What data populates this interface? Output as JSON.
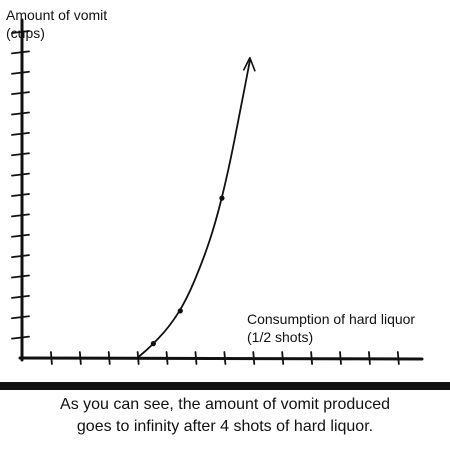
{
  "chart_data": {
    "type": "line",
    "ylabel_lines": [
      "Amount of vomit",
      "(cups)"
    ],
    "xlabel_lines": [
      "Consumption of hard liquor",
      "(1/2 shots)"
    ],
    "x_ticks": 13,
    "y_ticks": 16,
    "series": [
      {
        "points": [
          [
            4.7,
            0.0
          ],
          [
            5.2,
            0.5
          ],
          [
            6.0,
            1.5
          ],
          [
            6.7,
            2.8
          ],
          [
            7.4,
            4.8
          ],
          [
            7.9,
            6.6
          ],
          [
            8.4,
            9.0
          ],
          [
            8.9,
            12.0
          ],
          [
            9.3,
            14.5
          ]
        ],
        "markers": [
          [
            5.3,
            0.7
          ],
          [
            6.4,
            2.3
          ],
          [
            8.1,
            7.8
          ]
        ]
      }
    ],
    "xlim": [
      0,
      14
    ],
    "ylim": [
      0,
      16
    ],
    "grid": false,
    "y_axis_arrow": true
  },
  "caption": {
    "line1": "As you can see, the amount of vomit produced",
    "line2": "goes to infinity after 4 shots of hard liquor."
  }
}
